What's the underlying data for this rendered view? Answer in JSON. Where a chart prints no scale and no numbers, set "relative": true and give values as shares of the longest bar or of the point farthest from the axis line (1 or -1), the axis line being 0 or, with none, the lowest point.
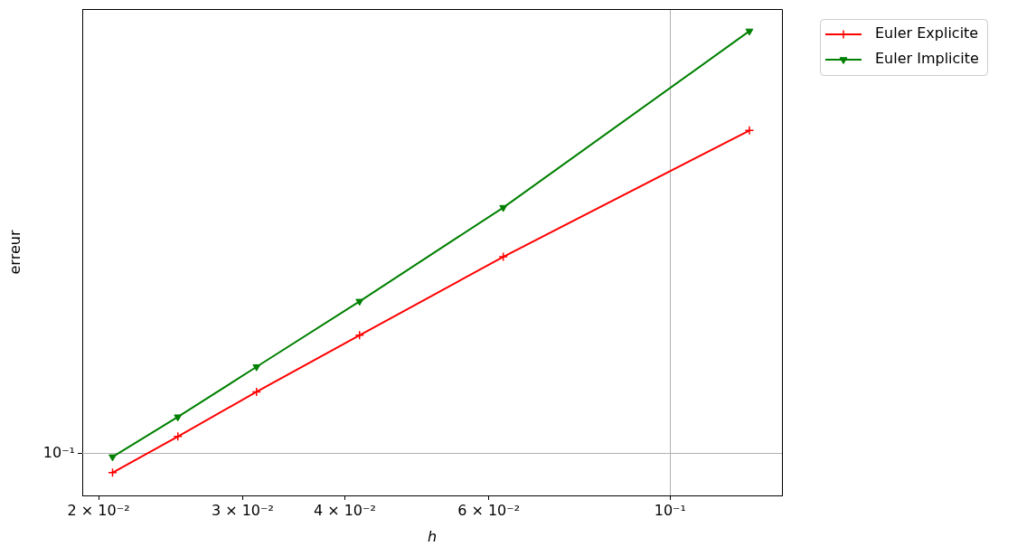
{
  "chart_data": {
    "type": "line",
    "xlabel": "h",
    "ylabel": "erreur",
    "relative": true,
    "x": [
      0.0208,
      0.025,
      0.0312,
      0.0417,
      0.0625,
      0.125
    ],
    "series": [
      {
        "name": "Euler Explicite",
        "color": "#ff0000",
        "marker": "cross",
        "values": [
          0.049,
          0.127,
          0.223,
          0.345,
          0.514,
          0.786
        ]
      },
      {
        "name": "Euler Implicite",
        "color": "#008000",
        "marker": "triangle",
        "values": [
          0.083,
          0.169,
          0.277,
          0.418,
          0.62,
          1
        ]
      }
    ],
    "log": "x",
    "xlim": [
      0.0191,
      0.137
    ],
    "xticks": [
      {
        "value": 0.02,
        "label": "2 × 10⁻²"
      },
      {
        "value": 0.03,
        "label": "3 × 10⁻²"
      },
      {
        "value": 0.04,
        "label": "4 × 10⁻²"
      },
      {
        "value": 0.06,
        "label": "6 × 10⁻²"
      },
      {
        "value": 0.1,
        "label": "10⁻¹"
      }
    ],
    "ref_lines": [
      {
        "axis": "y",
        "value": 0.091,
        "label": "10⁻¹",
        "color": "#b0b0b0"
      }
    ],
    "grid": "x",
    "legend": "top right",
    "line_style": "solid"
  }
}
